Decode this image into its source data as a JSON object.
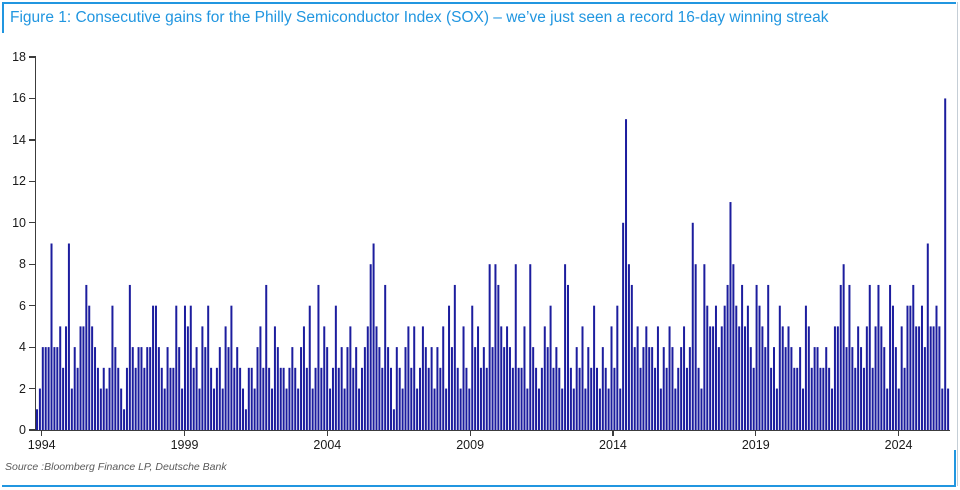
{
  "title": "Figure 1: Consecutive gains for the Philly Semiconductor Index (SOX) – we’ve just seen a record 16-day winning streak",
  "source": "Source :Bloomberg Finance LP, Deutsche Bank",
  "colors": {
    "accent": "#2196e0",
    "bar": "#1c1d9e",
    "axis": "#3c3c3c",
    "axis_text": "#1a1a1a",
    "source_text": "#595959",
    "page_edge": "#c5ced6"
  },
  "chart_data": {
    "type": "bar",
    "title": "Figure 1: Consecutive gains for the Philly Semiconductor Index (SOX) – we’ve just seen a record 16-day winning streak",
    "xlabel": "",
    "ylabel": "",
    "grid": false,
    "legend": false,
    "x_axis": {
      "ticks": [
        1994,
        1999,
        2004,
        2009,
        2014,
        2019,
        2024
      ],
      "range": [
        1993.8,
        2025.8
      ]
    },
    "y_axis": {
      "ticks": [
        0,
        2,
        4,
        6,
        8,
        10,
        12,
        14,
        16,
        18
      ],
      "range": [
        0,
        18
      ]
    },
    "ylim": [
      0,
      18
    ],
    "values": [
      1,
      2,
      4,
      4,
      4,
      9,
      4,
      4,
      5,
      3,
      5,
      9,
      2,
      4,
      3,
      5,
      5,
      7,
      6,
      5,
      4,
      3,
      2,
      3,
      2,
      3,
      6,
      4,
      3,
      2,
      1,
      3,
      7,
      4,
      3,
      4,
      4,
      3,
      4,
      4,
      6,
      6,
      4,
      3,
      2,
      4,
      3,
      3,
      6,
      4,
      2,
      6,
      5,
      6,
      3,
      4,
      2,
      5,
      4,
      6,
      3,
      2,
      3,
      4,
      2,
      5,
      4,
      6,
      3,
      4,
      3,
      2,
      1,
      3,
      3,
      2,
      4,
      5,
      3,
      7,
      3,
      2,
      5,
      4,
      3,
      3,
      2,
      3,
      4,
      3,
      2,
      4,
      5,
      3,
      6,
      2,
      3,
      7,
      3,
      5,
      4,
      2,
      3,
      6,
      3,
      4,
      2,
      4,
      5,
      3,
      4,
      2,
      3,
      4,
      5,
      8,
      9,
      5,
      4,
      3,
      7,
      4,
      3,
      1,
      4,
      3,
      2,
      4,
      5,
      3,
      5,
      2,
      3,
      5,
      4,
      3,
      4,
      2,
      4,
      3,
      5,
      2,
      6,
      4,
      7,
      3,
      2,
      5,
      3,
      2,
      6,
      4,
      5,
      3,
      4,
      3,
      8,
      4,
      8,
      7,
      5,
      4,
      5,
      4,
      3,
      8,
      3,
      3,
      5,
      2,
      8,
      4,
      3,
      2,
      3,
      5,
      4,
      6,
      3,
      4,
      3,
      2,
      8,
      7,
      3,
      2,
      4,
      3,
      5,
      2,
      4,
      3,
      6,
      3,
      2,
      4,
      3,
      2,
      5,
      3,
      6,
      2,
      10,
      15,
      8,
      7,
      4,
      5,
      3,
      4,
      5,
      4,
      4,
      3,
      5,
      2,
      4,
      3,
      5,
      4,
      2,
      3,
      4,
      5,
      3,
      4,
      10,
      8,
      3,
      2,
      8,
      6,
      5,
      5,
      6,
      4,
      5,
      6,
      7,
      11,
      8,
      6,
      5,
      7,
      5,
      6,
      4,
      3,
      7,
      6,
      5,
      4,
      7,
      3,
      4,
      2,
      6,
      5,
      4,
      5,
      4,
      3,
      3,
      4,
      2,
      6,
      5,
      3,
      4,
      4,
      3,
      3,
      4,
      3,
      2,
      5,
      5,
      7,
      8,
      4,
      7,
      4,
      3,
      5,
      4,
      3,
      5,
      7,
      3,
      5,
      7,
      5,
      4,
      2,
      7,
      6,
      4,
      2,
      5,
      3,
      6,
      6,
      7,
      5,
      5,
      6,
      4,
      9,
      5,
      5,
      6,
      5,
      2,
      16,
      2
    ]
  }
}
